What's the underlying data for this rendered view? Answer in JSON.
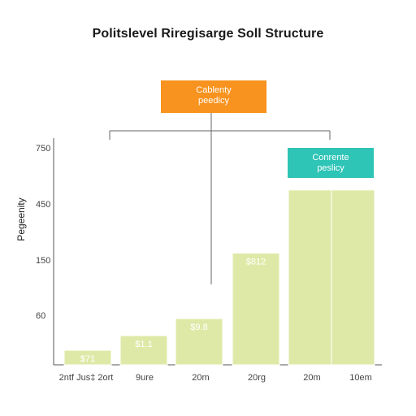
{
  "chart_data": {
    "type": "bar",
    "title": "Politslevel Riregisarge Soll Structure",
    "ylabel": "Pegeenity",
    "xlabel": "",
    "y_ticks": [
      "750",
      "450",
      "150",
      "60"
    ],
    "categories": [
      "2ntf  Jus‡  2ort",
      "9ure",
      "20m",
      "20rg",
      "20m",
      "10em"
    ],
    "values": [
      6,
      12,
      19,
      46,
      72,
      72
    ],
    "value_labels": [
      "$71",
      "$1.1",
      "$9.8",
      "$812",
      "",
      ""
    ],
    "ylim": [
      0,
      90
    ],
    "grid": false,
    "legend": "none",
    "colors": {
      "bar": "#dfe9a7",
      "bar_edge": "#ffffff",
      "axis": "#555555",
      "connector": "#666666",
      "callout_orange": "#f7931e",
      "callout_teal": "#2ec4b6"
    },
    "annotations": [
      {
        "text": [
          "Cablenty",
          "peedicy"
        ],
        "style": "orange"
      },
      {
        "text": [
          "Conrente",
          "peslicy"
        ],
        "style": "teal"
      }
    ]
  }
}
